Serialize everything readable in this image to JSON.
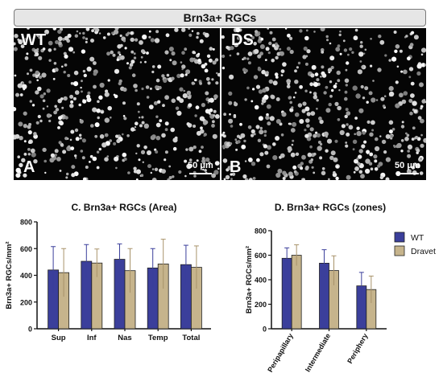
{
  "figure": {
    "header_title": "Brn3a+ RGCs",
    "panel_a": {
      "genotype": "WT",
      "letter": "A",
      "scale_label": "50 μm"
    },
    "panel_b": {
      "genotype": "DS",
      "letter": "B",
      "scale_label": "50 μm"
    }
  },
  "chart_data": [
    {
      "type": "bar",
      "title": "C. Brn3a+ RGCs (Area)",
      "ylabel": "Brn3a+ RGCs/mm²",
      "categories": [
        "Sup",
        "Inf",
        "Nas",
        "Temp",
        "Total"
      ],
      "ylim": [
        0,
        800
      ],
      "yticks": [
        "0",
        "200",
        "400",
        "600",
        "800"
      ],
      "series": [
        {
          "name": "WT",
          "color": "#3b3f9b",
          "values": [
            440,
            505,
            520,
            455,
            480
          ],
          "errors": [
            175,
            125,
            115,
            145,
            145
          ]
        },
        {
          "name": "Dravet",
          "color": "#c6b48c",
          "values": [
            420,
            492,
            435,
            485,
            460
          ],
          "errors": [
            180,
            105,
            165,
            185,
            160
          ]
        }
      ],
      "grid": false
    },
    {
      "type": "bar",
      "title": "D. Brn3a+ RGCs (zones)",
      "ylabel": "Brn3a+ RGCs/mm²",
      "categories": [
        "Peripapillary",
        "Intermediate",
        "Periphery"
      ],
      "ylim": [
        0,
        800
      ],
      "yticks": [
        "0",
        "200",
        "400",
        "600",
        "800"
      ],
      "series": [
        {
          "name": "WT",
          "color": "#3b3f9b",
          "values": [
            575,
            535,
            350
          ],
          "errors": [
            85,
            110,
            110
          ]
        },
        {
          "name": "Dravet",
          "color": "#c6b48c",
          "values": [
            600,
            475,
            320
          ],
          "errors": [
            85,
            120,
            110
          ]
        }
      ],
      "legend": "top-right",
      "grid": false
    }
  ]
}
